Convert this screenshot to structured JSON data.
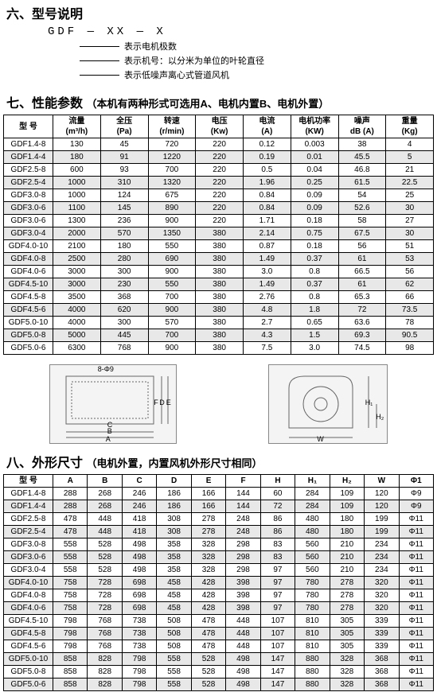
{
  "section6": {
    "title": "六、型号说明",
    "code": "GDF — XX — X",
    "lines": [
      "表示电机极数",
      "表示机号：以分米为单位的叶轮直径",
      "表示低噪声离心式管道风机"
    ]
  },
  "section7": {
    "title": "七、性能参数",
    "note": "（本机有两种形式可选用A、电机内置B、电机外置）",
    "headers": [
      {
        "l1": "型 号",
        "l2": ""
      },
      {
        "l1": "流量",
        "l2": "(m³/h)"
      },
      {
        "l1": "全压",
        "l2": "(Pa)"
      },
      {
        "l1": "转速",
        "l2": "(r/min)"
      },
      {
        "l1": "电压",
        "l2": "(Kw)"
      },
      {
        "l1": "电流",
        "l2": "(A)"
      },
      {
        "l1": "电机功率",
        "l2": "(KW)"
      },
      {
        "l1": "噪声",
        "l2": "dB (A)"
      },
      {
        "l1": "重量",
        "l2": "(Kg)"
      }
    ],
    "rows": [
      [
        "GDF1.4-8",
        "130",
        "45",
        "720",
        "220",
        "0.12",
        "0.003",
        "38",
        "4"
      ],
      [
        "GDF1.4-4",
        "180",
        "91",
        "1220",
        "220",
        "0.19",
        "0.01",
        "45.5",
        "5"
      ],
      [
        "GDF2.5-8",
        "600",
        "93",
        "700",
        "220",
        "0.5",
        "0.04",
        "46.8",
        "21"
      ],
      [
        "GDF2.5-4",
        "1000",
        "310",
        "1320",
        "220",
        "1.96",
        "0.25",
        "61.5",
        "22.5"
      ],
      [
        "GDF3.0-8",
        "1000",
        "124",
        "675",
        "220",
        "0.84",
        "0.09",
        "54",
        "25"
      ],
      [
        "GDF3.0-6",
        "1100",
        "145",
        "890",
        "220",
        "0.84",
        "0.09",
        "52.6",
        "30"
      ],
      [
        "GDF3.0-6",
        "1300",
        "236",
        "900",
        "220",
        "1.71",
        "0.18",
        "58",
        "27"
      ],
      [
        "GDF3.0-4",
        "2000",
        "570",
        "1350",
        "380",
        "2.14",
        "0.75",
        "67.5",
        "30"
      ],
      [
        "GDF4.0-10",
        "2100",
        "180",
        "550",
        "380",
        "0.87",
        "0.18",
        "56",
        "51"
      ],
      [
        "GDF4.0-8",
        "2500",
        "280",
        "690",
        "380",
        "1.49",
        "0.37",
        "61",
        "53"
      ],
      [
        "GDF4.0-6",
        "3000",
        "300",
        "900",
        "380",
        "3.0",
        "0.8",
        "66.5",
        "56"
      ],
      [
        "GDF4.5-10",
        "3000",
        "230",
        "550",
        "380",
        "1.49",
        "0.37",
        "61",
        "62"
      ],
      [
        "GDF4.5-8",
        "3500",
        "368",
        "700",
        "380",
        "2.76",
        "0.8",
        "65.3",
        "66"
      ],
      [
        "GDF4.5-6",
        "4000",
        "620",
        "900",
        "380",
        "4.8",
        "1.8",
        "72",
        "73.5"
      ],
      [
        "GDF5.0-10",
        "4000",
        "300",
        "570",
        "380",
        "2.7",
        "0.65",
        "63.6",
        "78"
      ],
      [
        "GDF5.0-8",
        "5000",
        "445",
        "700",
        "380",
        "4.3",
        "1.5",
        "69.3",
        "90.5"
      ],
      [
        "GDF5.0-6",
        "6300",
        "768",
        "900",
        "380",
        "7.5",
        "3.0",
        "74.5",
        "98"
      ]
    ]
  },
  "diagrams": {
    "d1_labels": [
      "B",
      "C",
      "A",
      "F",
      "E",
      "D",
      "8-Φ9"
    ],
    "d2_labels": [
      "W",
      "H₁",
      "H₂"
    ]
  },
  "section8": {
    "title": "八、外形尺寸",
    "note": "（电机外置，内置风机外形尺寸相同）",
    "headers": [
      "型 号",
      "A",
      "B",
      "C",
      "D",
      "E",
      "F",
      "H",
      "H₁",
      "H₂",
      "W",
      "Φ1"
    ],
    "rows": [
      [
        "GDF1.4-8",
        "288",
        "268",
        "246",
        "186",
        "166",
        "144",
        "60",
        "284",
        "109",
        "120",
        "Φ9"
      ],
      [
        "GDF1.4-4",
        "288",
        "268",
        "246",
        "186",
        "166",
        "144",
        "72",
        "284",
        "109",
        "120",
        "Φ9"
      ],
      [
        "GDF2.5-8",
        "478",
        "448",
        "418",
        "308",
        "278",
        "248",
        "86",
        "480",
        "180",
        "199",
        "Φ11"
      ],
      [
        "GDF2.5-4",
        "478",
        "448",
        "418",
        "308",
        "278",
        "248",
        "86",
        "480",
        "180",
        "199",
        "Φ11"
      ],
      [
        "GDF3.0-8",
        "558",
        "528",
        "498",
        "358",
        "328",
        "298",
        "83",
        "560",
        "210",
        "234",
        "Φ11"
      ],
      [
        "GDF3.0-6",
        "558",
        "528",
        "498",
        "358",
        "328",
        "298",
        "83",
        "560",
        "210",
        "234",
        "Φ11"
      ],
      [
        "GDF3.0-4",
        "558",
        "528",
        "498",
        "358",
        "328",
        "298",
        "97",
        "560",
        "210",
        "234",
        "Φ11"
      ],
      [
        "GDF4.0-10",
        "758",
        "728",
        "698",
        "458",
        "428",
        "398",
        "97",
        "780",
        "278",
        "320",
        "Φ11"
      ],
      [
        "GDF4.0-8",
        "758",
        "728",
        "698",
        "458",
        "428",
        "398",
        "97",
        "780",
        "278",
        "320",
        "Φ11"
      ],
      [
        "GDF4.0-6",
        "758",
        "728",
        "698",
        "458",
        "428",
        "398",
        "97",
        "780",
        "278",
        "320",
        "Φ11"
      ],
      [
        "GDF4.5-10",
        "798",
        "768",
        "738",
        "508",
        "478",
        "448",
        "107",
        "810",
        "305",
        "339",
        "Φ11"
      ],
      [
        "GDF4.5-8",
        "798",
        "768",
        "738",
        "508",
        "478",
        "448",
        "107",
        "810",
        "305",
        "339",
        "Φ11"
      ],
      [
        "GDF4.5-6",
        "798",
        "768",
        "738",
        "508",
        "478",
        "448",
        "107",
        "810",
        "305",
        "339",
        "Φ11"
      ],
      [
        "GDF5.0-10",
        "858",
        "828",
        "798",
        "558",
        "528",
        "498",
        "147",
        "880",
        "328",
        "368",
        "Φ11"
      ],
      [
        "GDF5.0-8",
        "858",
        "828",
        "798",
        "558",
        "528",
        "498",
        "147",
        "880",
        "328",
        "368",
        "Φ11"
      ],
      [
        "GDF5.0-6",
        "858",
        "828",
        "798",
        "558",
        "528",
        "498",
        "147",
        "880",
        "328",
        "368",
        "Φ11"
      ]
    ]
  },
  "colors": {
    "border": "#000000",
    "alt_row_bg": "#e8e8e8",
    "text": "#000000",
    "background": "#ffffff"
  }
}
